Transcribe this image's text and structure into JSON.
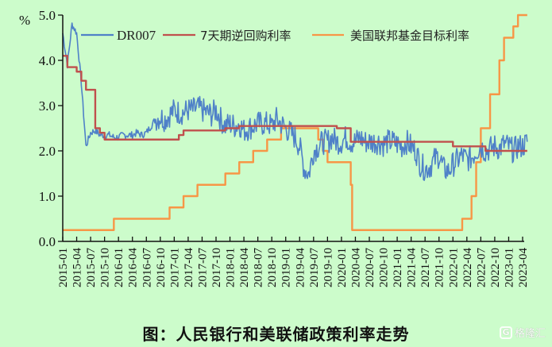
{
  "chart_data": {
    "type": "line",
    "title": "图：人民银行和美联储政策利率走势",
    "ylabel": "%",
    "xlabel": "",
    "ylim": [
      0,
      5
    ],
    "yticks": [
      "0.0",
      "1.0",
      "2.0",
      "3.0",
      "4.0",
      "5.0"
    ],
    "grid": false,
    "legend_position": "top",
    "x_ticks": [
      "2015-01",
      "2015-04",
      "2015-07",
      "2015-10",
      "2016-01",
      "2016-04",
      "2016-07",
      "2016-10",
      "2017-01",
      "2017-04",
      "2017-07",
      "2017-10",
      "2018-01",
      "2018-04",
      "2018-07",
      "2018-10",
      "2019-01",
      "2019-04",
      "2019-07",
      "2019-10",
      "2020-01",
      "2020-04",
      "2020-07",
      "2020-10",
      "2021-01",
      "2021-04",
      "2021-07",
      "2021-10",
      "2022-01",
      "2022-04",
      "2022-07",
      "2022-10",
      "2023-01",
      "2023-04"
    ],
    "series": [
      {
        "name": "DR007",
        "color": "#4f81c8",
        "style": "noisy-line",
        "x_month_index": [
          0,
          1,
          2,
          3,
          4,
          5,
          6,
          7,
          8,
          9,
          10,
          11,
          12,
          13,
          14,
          15,
          16,
          17,
          18,
          19,
          20,
          21,
          22,
          23,
          24,
          25,
          26,
          27,
          28,
          29,
          30,
          31,
          32,
          33,
          34,
          35,
          36,
          37,
          38,
          39,
          40,
          41,
          42,
          43,
          44,
          45,
          46,
          47,
          48,
          49,
          50,
          51,
          52,
          53,
          54,
          55,
          56,
          57,
          58,
          59,
          60,
          61,
          62,
          63,
          64,
          65,
          66,
          67,
          68,
          69,
          70,
          71,
          72,
          73,
          74,
          75,
          76,
          77,
          78,
          79,
          80,
          81,
          82,
          83,
          84,
          85,
          86,
          87,
          88,
          89,
          90,
          91,
          92,
          93,
          94,
          95,
          96,
          97,
          98,
          99,
          100
        ],
        "values": [
          4.6,
          3.9,
          4.8,
          4.6,
          3.5,
          2.1,
          2.4,
          2.45,
          2.35,
          2.35,
          2.35,
          2.3,
          2.3,
          2.35,
          2.35,
          2.35,
          2.4,
          2.35,
          2.4,
          2.55,
          2.7,
          2.75,
          2.7,
          2.8,
          2.9,
          2.85,
          2.85,
          2.9,
          2.9,
          2.95,
          2.9,
          2.85,
          2.8,
          2.9,
          2.7,
          2.55,
          2.6,
          2.55,
          2.6,
          2.45,
          2.5,
          2.55,
          2.6,
          2.6,
          2.6,
          2.55,
          2.7,
          2.6,
          2.5,
          2.4,
          2.3,
          2.1,
          1.6,
          1.5,
          2.0,
          2.1,
          2.2,
          2.2,
          2.3,
          2.2,
          2.2,
          2.3,
          2.2,
          2.2,
          2.3,
          2.2,
          2.2,
          2.2,
          2.2,
          2.15,
          2.2,
          2.2,
          2.15,
          2.1,
          2.2,
          2.1,
          2.0,
          1.7,
          1.6,
          1.65,
          1.8,
          1.9,
          1.6,
          1.55,
          1.7,
          1.8,
          1.9,
          1.8,
          1.85,
          2.0,
          2.1,
          2.0,
          2.05,
          2.1,
          2.05,
          2.15,
          2.1,
          2.0,
          2.1,
          2.1,
          2.2
        ]
      },
      {
        "name": "7天期逆回购利率",
        "color": "#c0504d",
        "style": "step",
        "steps": [
          {
            "from": "2015-01",
            "value": 4.1
          },
          {
            "from": "2015-02",
            "value": 3.85
          },
          {
            "from": "2015-04",
            "value": 3.75
          },
          {
            "from": "2015-05",
            "value": 3.55
          },
          {
            "from": "2015-06",
            "value": 3.35
          },
          {
            "from": "2015-08",
            "value": 2.5
          },
          {
            "from": "2015-09",
            "value": 2.4
          },
          {
            "from": "2015-10",
            "value": 2.25
          },
          {
            "from": "2017-02",
            "value": 2.35
          },
          {
            "from": "2017-03",
            "value": 2.45
          },
          {
            "from": "2017-12",
            "value": 2.5
          },
          {
            "from": "2018-03",
            "value": 2.55
          },
          {
            "from": "2019-12",
            "value": 2.5
          },
          {
            "from": "2020-03",
            "value": 2.2
          },
          {
            "from": "2022-01",
            "value": 2.1
          },
          {
            "from": "2022-08",
            "value": 2.0
          },
          {
            "to": "2023-05",
            "value": 2.0
          }
        ]
      },
      {
        "name": "美国联邦基金目标利率",
        "color": "#f79646",
        "style": "step",
        "steps": [
          {
            "from": "2015-01",
            "value": 0.25
          },
          {
            "from": "2015-12",
            "value": 0.5
          },
          {
            "from": "2016-12",
            "value": 0.75
          },
          {
            "from": "2017-03",
            "value": 1.0
          },
          {
            "from": "2017-06",
            "value": 1.25
          },
          {
            "from": "2017-12",
            "value": 1.5
          },
          {
            "from": "2018-03",
            "value": 1.75
          },
          {
            "from": "2018-06",
            "value": 2.0
          },
          {
            "from": "2018-09",
            "value": 2.25
          },
          {
            "from": "2018-12",
            "value": 2.5
          },
          {
            "from": "2019-08",
            "value": 2.25
          },
          {
            "from": "2019-09",
            "value": 2.0
          },
          {
            "from": "2019-10",
            "value": 1.75
          },
          {
            "from": "2020-03",
            "value": 1.25
          },
          {
            "from": "2020-03b",
            "value": 0.25
          },
          {
            "from": "2022-03",
            "value": 0.5
          },
          {
            "from": "2022-05",
            "value": 1.0
          },
          {
            "from": "2022-06",
            "value": 1.75
          },
          {
            "from": "2022-07",
            "value": 2.5
          },
          {
            "from": "2022-09",
            "value": 3.25
          },
          {
            "from": "2022-11",
            "value": 4.0
          },
          {
            "from": "2022-12",
            "value": 4.5
          },
          {
            "from": "2023-02",
            "value": 4.75
          },
          {
            "from": "2023-03",
            "value": 5.0
          },
          {
            "to": "2023-05",
            "value": 5.0
          }
        ]
      }
    ]
  },
  "caption": "图：人民银行和美联储政策利率走势",
  "watermark": {
    "icon": "G",
    "text": "格隆汇"
  },
  "colors": {
    "background": "#ccfccb",
    "axis": "#111111"
  }
}
